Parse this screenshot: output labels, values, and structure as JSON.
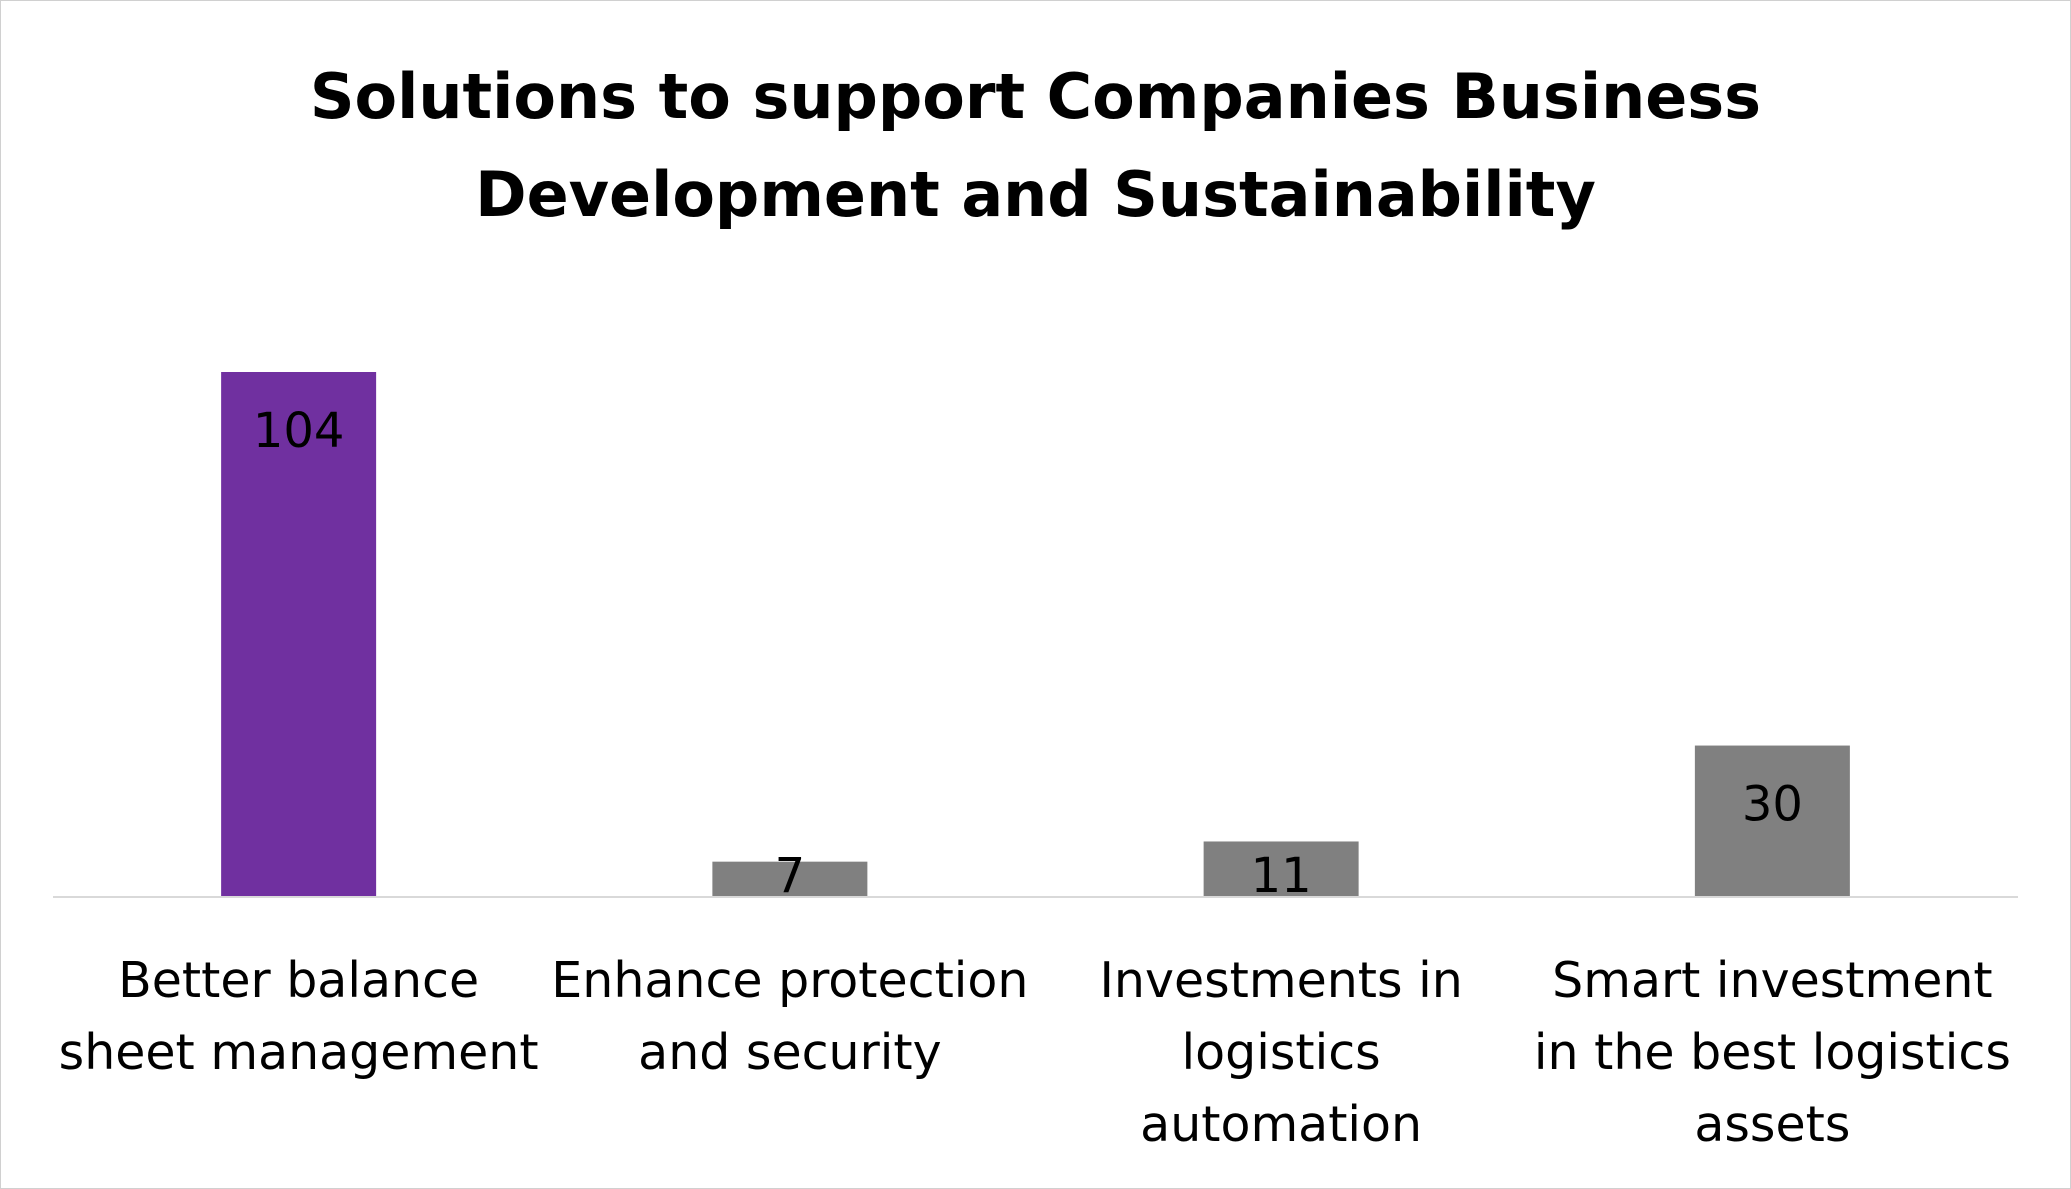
{
  "chart_data": {
    "type": "bar",
    "title": "Solutions to support Companies Business Development and Sustainability",
    "categories": [
      "Better balance sheet management",
      "Enhance protection and security",
      "Investments in logistics automation",
      "Smart investment in the best logistics assets"
    ],
    "values": [
      104,
      7,
      11,
      30
    ],
    "colors": [
      "#7030a0",
      "#808080",
      "#808080",
      "#808080"
    ]
  }
}
